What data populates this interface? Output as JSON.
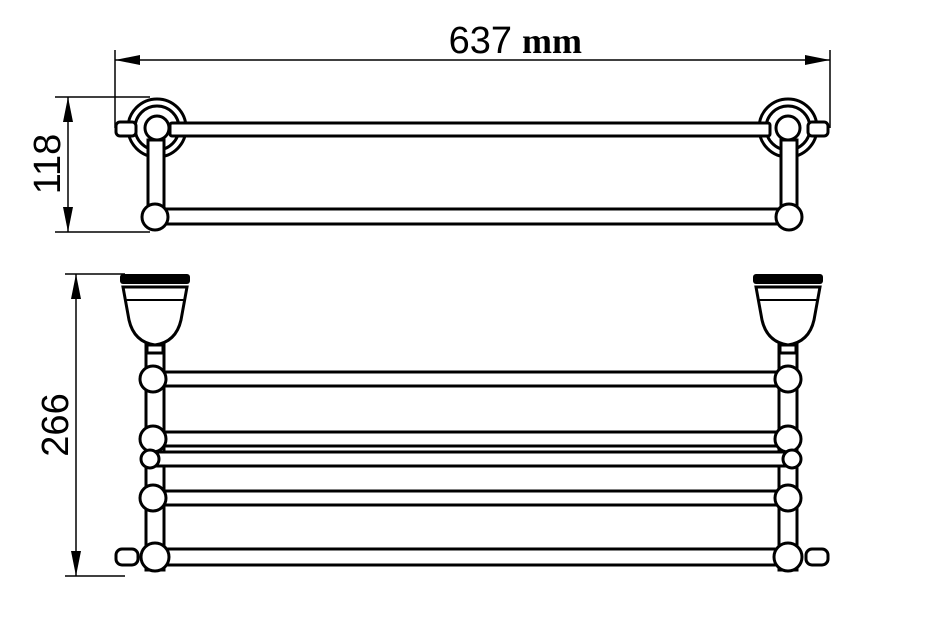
{
  "dimensions": {
    "width": {
      "value": "637",
      "unit": "mm"
    },
    "height_top": {
      "value": "118"
    },
    "height_front": {
      "value": "266"
    }
  }
}
